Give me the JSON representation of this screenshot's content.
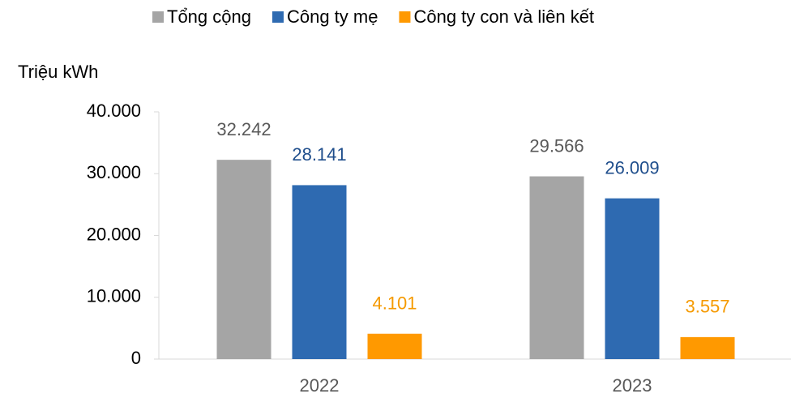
{
  "chart_data": {
    "type": "bar",
    "y_axis_label": "Triệu kWh",
    "categories": [
      "2022",
      "2023"
    ],
    "series": [
      {
        "name": "Tổng cộng",
        "color": "#a5a5a5",
        "label_color": "#595959",
        "values": [
          32242,
          29566
        ],
        "value_labels": [
          "32.242",
          "29.566"
        ]
      },
      {
        "name": "Công ty mẹ",
        "color": "#2e6ab1",
        "label_color": "#1f4e8c",
        "values": [
          28141,
          26009
        ],
        "value_labels": [
          "28.141",
          "26.009"
        ]
      },
      {
        "name": "Công ty con và liên kết",
        "color": "#ff9900",
        "label_color": "#f59a00",
        "values": [
          4101,
          3557
        ],
        "value_labels": [
          "4.101",
          "3.557"
        ]
      }
    ],
    "ylim": [
      0,
      40000
    ],
    "yticks": [
      {
        "value": 0,
        "label": "0"
      },
      {
        "value": 10000,
        "label": "10.000"
      },
      {
        "value": 20000,
        "label": "20.000"
      },
      {
        "value": 30000,
        "label": "30.000"
      },
      {
        "value": 40000,
        "label": "40.000"
      }
    ],
    "legend": "top"
  }
}
